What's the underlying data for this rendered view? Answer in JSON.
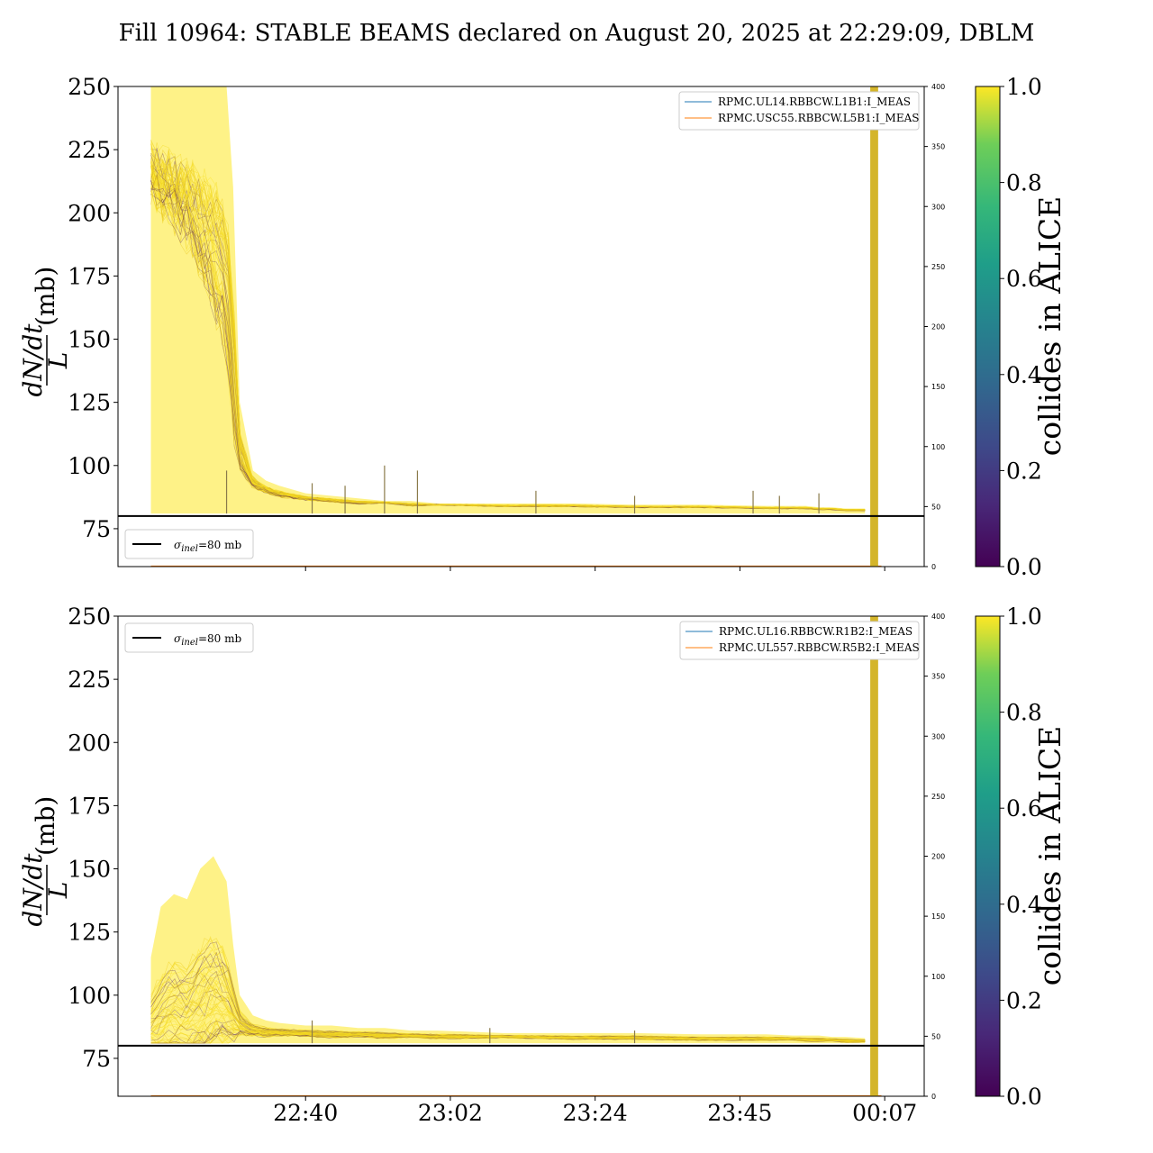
{
  "title": "Fill 10964: STABLE BEAMS declared on August 20, 2025 at 22:29:09, DBLM",
  "colors": {
    "threshold": "#000000",
    "series_blue": "#1f77b4",
    "series_orange": "#ff7f0e",
    "band": "#d4b52a",
    "viridis_low": "#440154",
    "viridis_high": "#fde725"
  },
  "chart_data": [
    {
      "type": "line",
      "panel": "top",
      "ylabel": "dN/dt / L (mb)",
      "ylabel_parts": {
        "num": "dN/dt",
        "den": "L",
        "unit": "(mb)"
      },
      "xlabel": "",
      "ylim": [
        60,
        250
      ],
      "yticks": [
        75,
        100,
        125,
        150,
        175,
        200,
        225,
        250
      ],
      "xlim_minutes_after_2230": [
        -18.5,
        104
      ],
      "x_ticks": [
        "22:40",
        "23:02",
        "23:24",
        "23:45",
        "00:07"
      ],
      "x_tick_minutes_after_2230": [
        10,
        32,
        54,
        76,
        98
      ],
      "x_ticks_shown": false,
      "threshold": {
        "label": "σinel=80 mb",
        "label_sym": "σ",
        "label_sub": "inel",
        "label_rest": "=80 mb",
        "value": 80
      },
      "threshold_legend_position": "lower-left",
      "right_axis": {
        "ylim": [
          0,
          400
        ],
        "ticks": [
          0,
          50,
          100,
          150,
          200,
          250,
          300,
          350,
          400
        ]
      },
      "right_series": [
        {
          "name": "RPMC.UL14.RBBCW.L1B1:I_MEAS",
          "color": "#1f77b4",
          "value": 0
        },
        {
          "name": "RPMC.USC55.RBBCW.L5B1:I_MEAS",
          "color": "#ff7f0e",
          "value": 0
        }
      ],
      "right_legend_position": "upper-right",
      "bunch_envelope": {
        "x_minutes_after_2230": [
          -13.5,
          -12,
          -10,
          -8,
          -6,
          -4,
          -2,
          -1,
          0,
          2,
          4,
          6,
          10,
          14,
          18,
          22,
          26,
          30,
          40,
          50,
          60,
          70,
          80,
          84,
          86,
          88,
          90,
          92,
          95
        ],
        "upper": [
          250,
          250,
          250,
          250,
          250,
          250,
          250,
          210,
          125,
          98,
          94,
          92,
          89,
          88,
          87,
          86,
          86,
          85,
          85,
          85,
          84.5,
          84.5,
          84,
          84,
          84,
          83.5,
          83.5,
          83,
          83
        ],
        "lower": [
          81,
          81,
          81,
          81,
          81,
          81,
          81,
          81,
          81,
          81,
          81,
          81,
          81,
          81,
          81,
          81,
          81,
          81,
          81,
          81,
          81,
          81,
          81,
          81,
          81,
          81,
          81,
          81,
          81
        ],
        "typical": [
          240,
          235,
          230,
          225,
          215,
          205,
          190,
          150,
          110,
          95,
          92,
          90,
          88,
          87,
          86,
          86,
          85,
          85,
          84.5,
          84.5,
          84,
          84,
          83.5,
          83.5,
          83.5,
          83,
          83,
          82.5,
          82.5
        ]
      },
      "spikes_minutes_after_2230": [
        [
          -2,
          98
        ],
        [
          11,
          93
        ],
        [
          16,
          92
        ],
        [
          22,
          100
        ],
        [
          27,
          98
        ],
        [
          45,
          90
        ],
        [
          60,
          88
        ],
        [
          78,
          90
        ],
        [
          82,
          88
        ],
        [
          88,
          89
        ]
      ],
      "band_minutes_after_2230": [
        95.8,
        97
      ]
    },
    {
      "type": "line",
      "panel": "bottom",
      "ylabel": "dN/dt / L (mb)",
      "ylabel_parts": {
        "num": "dN/dt",
        "den": "L",
        "unit": "(mb)"
      },
      "xlabel": "",
      "ylim": [
        60,
        250
      ],
      "yticks": [
        75,
        100,
        125,
        150,
        175,
        200,
        225,
        250
      ],
      "xlim_minutes_after_2230": [
        -18.5,
        104
      ],
      "x_ticks": [
        "22:40",
        "23:02",
        "23:24",
        "23:45",
        "00:07"
      ],
      "x_tick_minutes_after_2230": [
        10,
        32,
        54,
        76,
        98
      ],
      "x_ticks_shown": true,
      "threshold": {
        "label": "σinel=80 mb",
        "label_sym": "σ",
        "label_sub": "inel",
        "label_rest": "=80 mb",
        "value": 80
      },
      "threshold_legend_position": "upper-left",
      "right_axis": {
        "ylim": [
          0,
          400
        ],
        "ticks": [
          0,
          50,
          100,
          150,
          200,
          250,
          300,
          350,
          400
        ]
      },
      "right_series": [
        {
          "name": "RPMC.UL16.RBBCW.R1B2:I_MEAS",
          "color": "#1f77b4",
          "value": 0
        },
        {
          "name": "RPMC.UL557.RBBCW.R5B2:I_MEAS",
          "color": "#ff7f0e",
          "value": 0
        }
      ],
      "right_legend_position": "upper-right",
      "bunch_envelope": {
        "x_minutes_after_2230": [
          -13.5,
          -12,
          -10,
          -8,
          -6,
          -4,
          -2,
          -1,
          0,
          2,
          4,
          6,
          10,
          14,
          18,
          22,
          26,
          30,
          40,
          50,
          60,
          70,
          80,
          84,
          86,
          88,
          90,
          92,
          95
        ],
        "upper": [
          115,
          135,
          140,
          138,
          150,
          155,
          145,
          120,
          100,
          92,
          90,
          89,
          88,
          88,
          87,
          87,
          86,
          86,
          85,
          85,
          85,
          84.5,
          84.5,
          84,
          84,
          84,
          83.5,
          83.5,
          83
        ],
        "lower": [
          81,
          81,
          81,
          81,
          81,
          81,
          81,
          81,
          81,
          81,
          81,
          81,
          81,
          81,
          81,
          81,
          81,
          81,
          81,
          81,
          81,
          81,
          81,
          81,
          81,
          81,
          81,
          81,
          81
        ],
        "typical": [
          88,
          92,
          96,
          95,
          100,
          105,
          102,
          95,
          90,
          87,
          86,
          86,
          85.5,
          85,
          85,
          84.5,
          84.5,
          84,
          84,
          83.5,
          83.5,
          83,
          83,
          83,
          82.5,
          82.5,
          82.5,
          82,
          82
        ]
      },
      "spikes_minutes_after_2230": [
        [
          11,
          90
        ],
        [
          38,
          87
        ],
        [
          60,
          86
        ]
      ],
      "band_minutes_after_2230": [
        95.8,
        97
      ]
    }
  ],
  "colorbar": {
    "label": "collides in ALICE",
    "range": [
      0.0,
      1.0
    ],
    "ticks": [
      "0.0",
      "0.2",
      "0.4",
      "0.6",
      "0.8",
      "1.0"
    ],
    "colormap": "viridis"
  }
}
